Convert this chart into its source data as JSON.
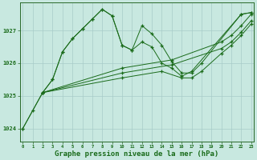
{
  "background_color": "#c8e8e0",
  "grid_color": "#a8ccc8",
  "line_color": "#1a6b1a",
  "marker_color": "#1a6b1a",
  "xlabel": "Graphe pression niveau de la mer (hPa)",
  "xlabel_fontsize": 6.5,
  "ylabel_ticks": [
    1024,
    1025,
    1026,
    1027
  ],
  "xlim": [
    -0.3,
    23.3
  ],
  "ylim": [
    1023.6,
    1027.85
  ],
  "series": [
    {
      "x": [
        0,
        1,
        2,
        3,
        4,
        5,
        6,
        7,
        8,
        9,
        10,
        11,
        12,
        13,
        14,
        15,
        16,
        17,
        22,
        23
      ],
      "y": [
        1024.0,
        1024.55,
        1025.1,
        1025.5,
        1026.35,
        1026.75,
        1027.05,
        1027.35,
        1027.65,
        1027.45,
        1026.55,
        1026.4,
        1026.65,
        1026.5,
        1026.0,
        1025.85,
        1025.6,
        1025.75,
        1027.5,
        1027.55
      ]
    },
    {
      "x": [
        2,
        3,
        4,
        5,
        6,
        7,
        8,
        9,
        10,
        11,
        12,
        13,
        14,
        15,
        16,
        17,
        18,
        22,
        23
      ],
      "y": [
        1025.1,
        1025.5,
        1026.35,
        1026.75,
        1027.05,
        1027.35,
        1027.65,
        1027.45,
        1026.55,
        1026.4,
        1027.15,
        1026.9,
        1026.55,
        1026.05,
        1025.7,
        1025.7,
        1026.0,
        1027.5,
        1027.55
      ]
    },
    {
      "x": [
        0,
        2,
        10,
        15,
        20,
        21,
        22,
        23
      ],
      "y": [
        1024.0,
        1025.1,
        1025.85,
        1026.1,
        1026.65,
        1026.85,
        1027.15,
        1027.5
      ]
    },
    {
      "x": [
        2,
        10,
        15,
        20,
        21,
        22,
        23
      ],
      "y": [
        1025.1,
        1025.7,
        1025.95,
        1026.45,
        1026.65,
        1026.95,
        1027.3
      ]
    },
    {
      "x": [
        2,
        10,
        14,
        16,
        17,
        18,
        20,
        21,
        22,
        23
      ],
      "y": [
        1025.1,
        1025.55,
        1025.75,
        1025.55,
        1025.55,
        1025.75,
        1026.3,
        1026.55,
        1026.85,
        1027.2
      ]
    }
  ]
}
